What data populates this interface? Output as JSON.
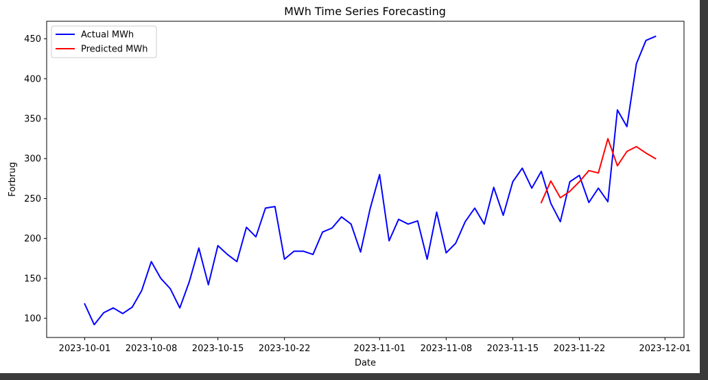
{
  "chart_data": {
    "type": "line",
    "title": "MWh Time Series Forecasting",
    "xlabel": "Date",
    "ylabel": "Forbrug",
    "xlim": [
      "2023-09-27",
      "2023-12-03"
    ],
    "ylim": [
      76,
      472
    ],
    "x_ticks": [
      "2023-10-01",
      "2023-10-08",
      "2023-10-15",
      "2023-10-22",
      "2023-11-01",
      "2023-11-08",
      "2023-11-15",
      "2023-11-22",
      "2023-12-01"
    ],
    "y_ticks": [
      100,
      150,
      200,
      250,
      300,
      350,
      400,
      450
    ],
    "grid": false,
    "legend_position": "top-left",
    "series": [
      {
        "name": "Actual MWh",
        "color": "#0000ff",
        "x_start": "2023-10-01",
        "x_step_days": 1,
        "values": [
          118,
          92,
          107,
          113,
          106,
          114,
          135,
          171,
          150,
          137,
          113,
          146,
          188,
          142,
          191,
          180,
          171,
          214,
          202,
          238,
          240,
          174,
          184,
          184,
          180,
          208,
          213,
          227,
          218,
          183,
          237,
          280,
          197,
          224,
          218,
          222,
          174,
          233,
          182,
          194,
          221,
          238,
          218,
          264,
          229,
          271,
          288,
          263,
          284,
          244,
          221,
          271,
          279,
          245,
          263,
          246,
          361,
          340,
          419,
          448,
          453
        ]
      },
      {
        "name": "Predicted MWh",
        "color": "#ff0000",
        "x_start": "2023-11-18",
        "x_step_days": 1,
        "values": [
          245,
          272,
          251,
          259,
          271,
          285,
          282,
          325,
          291,
          309,
          315,
          307,
          300
        ]
      }
    ]
  }
}
